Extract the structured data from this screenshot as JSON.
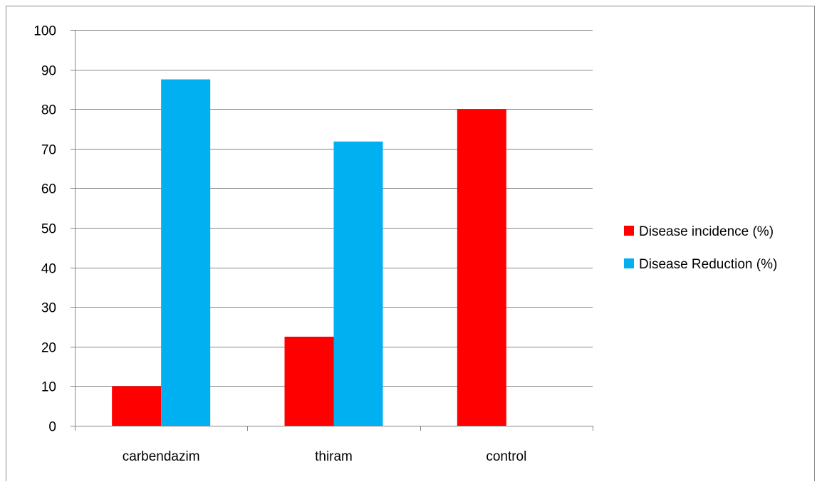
{
  "chart_data": {
    "type": "bar",
    "categories": [
      "carbendazim",
      "thiram",
      "control"
    ],
    "series": [
      {
        "name": "Disease incidence (%)",
        "color": "#ff0000",
        "values": [
          10,
          22.5,
          80
        ]
      },
      {
        "name": "Disease Reduction (%)",
        "color": "#00b0f0",
        "values": [
          87.5,
          71.8,
          null
        ]
      }
    ],
    "ylim": [
      0,
      100
    ],
    "yticks": [
      0,
      10,
      20,
      30,
      40,
      50,
      60,
      70,
      80,
      90,
      100
    ],
    "grid": true,
    "legend_position": "right"
  }
}
